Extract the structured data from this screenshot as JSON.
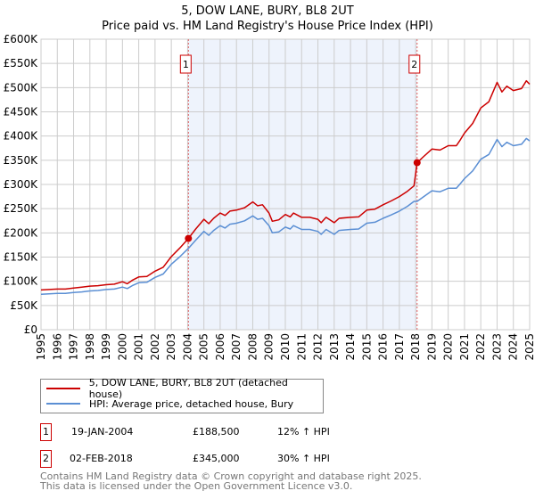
{
  "title": "5, DOW LANE, BURY, BL8 2UT",
  "subtitle": "Price paid vs. HM Land Registry's House Price Index (HPI)",
  "chart_data": {
    "type": "line",
    "title": "5, DOW LANE, BURY, BL8 2UT",
    "subtitle": "Price paid vs. HM Land Registry's House Price Index (HPI)",
    "xlim": [
      1995,
      2025
    ],
    "ylim": [
      0,
      600000
    ],
    "grid": true,
    "y_ticks": [
      0,
      50000,
      100000,
      150000,
      200000,
      250000,
      300000,
      350000,
      400000,
      450000,
      500000,
      550000,
      600000
    ],
    "y_tick_labels": [
      "£0",
      "£50K",
      "£100K",
      "£150K",
      "£200K",
      "£250K",
      "£300K",
      "£350K",
      "£400K",
      "£450K",
      "£500K",
      "£550K",
      "£600K"
    ],
    "x_tick_labels": [
      "1995",
      "1996",
      "1997",
      "1998",
      "1999",
      "2000",
      "2001",
      "2002",
      "2003",
      "2004",
      "2005",
      "2006",
      "2007",
      "2008",
      "2009",
      "2010",
      "2011",
      "2012",
      "2013",
      "2014",
      "2015",
      "2016",
      "2017",
      "2018",
      "2019",
      "2020",
      "2021",
      "2022",
      "2023",
      "2024",
      "2025"
    ],
    "x": [
      1995,
      1995.5,
      1996,
      1996.5,
      1997,
      1997.5,
      1998,
      1998.5,
      1999,
      1999.5,
      2000,
      2000.3,
      2000.6,
      2001,
      2001.5,
      2002,
      2002.5,
      2003,
      2003.5,
      2004.05,
      2004.5,
      2005,
      2005.3,
      2005.6,
      2006,
      2006.3,
      2006.6,
      2007,
      2007.5,
      2008,
      2008.3,
      2008.6,
      2009,
      2009.2,
      2009.6,
      2010,
      2010.3,
      2010.5,
      2011,
      2011.5,
      2012,
      2012.2,
      2012.5,
      2013,
      2013.3,
      2014,
      2014.5,
      2015,
      2015.5,
      2016,
      2016.5,
      2017,
      2017.5,
      2017.9,
      2018.09,
      2018.5,
      2019,
      2019.5,
      2020,
      2020.5,
      2020.7,
      2021,
      2021.5,
      2022,
      2022.5,
      2023,
      2023.3,
      2023.6,
      2024,
      2024.5,
      2024.8,
      2025
    ],
    "series": [
      {
        "name": "5, DOW LANE, BURY, BL8 2UT (detached house)",
        "color": "#cc0000",
        "values": [
          82000,
          83000,
          84000,
          84000,
          86000,
          88000,
          90000,
          91000,
          93000,
          94000,
          99000,
          95000,
          102000,
          109000,
          110000,
          121000,
          129000,
          151000,
          168000,
          188500,
          208000,
          228000,
          219000,
          230000,
          241000,
          236000,
          245000,
          247000,
          252000,
          264000,
          256000,
          258000,
          241000,
          224000,
          227000,
          238000,
          233000,
          241000,
          232000,
          232000,
          228000,
          221000,
          232000,
          221000,
          230000,
          232000,
          233000,
          247000,
          249000,
          258000,
          266000,
          275000,
          286000,
          297000,
          345000,
          358000,
          373000,
          371000,
          380000,
          380000,
          390000,
          406000,
          426000,
          458000,
          471000,
          511000,
          491000,
          503000,
          494000,
          498000,
          514000,
          507000
        ]
      },
      {
        "name": "HPI: Average price, detached house, Bury",
        "color": "#5b8fd4",
        "values": [
          73000,
          74000,
          75000,
          75000,
          77000,
          78000,
          80000,
          81000,
          83000,
          84000,
          88000,
          85000,
          91000,
          97000,
          98000,
          108000,
          115000,
          135000,
          150000,
          168000,
          185000,
          203000,
          195000,
          205000,
          215000,
          210000,
          218000,
          220000,
          225000,
          235000,
          228000,
          230000,
          215000,
          200000,
          202000,
          212000,
          208000,
          215000,
          207000,
          207000,
          203000,
          197000,
          207000,
          197000,
          205000,
          207000,
          208000,
          220000,
          222000,
          230000,
          237000,
          245000,
          255000,
          265000,
          265000,
          275000,
          287000,
          285000,
          292000,
          292000,
          300000,
          312000,
          328000,
          352000,
          362000,
          393000,
          378000,
          387000,
          380000,
          383000,
          395000,
          390000
        ]
      }
    ],
    "sales": [
      {
        "label": "1",
        "x": 2004.05,
        "price": 188500,
        "date": "19-JAN-2004",
        "price_text": "£188,500",
        "hpi_text": "12% ↑ HPI"
      },
      {
        "label": "2",
        "x": 2018.09,
        "price": 345000,
        "date": "02-FEB-2018",
        "price_text": "£345,000",
        "hpi_text": "30% ↑ HPI"
      }
    ],
    "shade_color": "#eef3fc"
  },
  "legend": {
    "property": "5, DOW LANE, BURY, BL8 2UT (detached house)",
    "hpi": "HPI: Average price, detached house, Bury"
  },
  "footer": {
    "line1": "Contains HM Land Registry data © Crown copyright and database right 2025.",
    "line2": "This data is licensed under the Open Government Licence v3.0."
  }
}
